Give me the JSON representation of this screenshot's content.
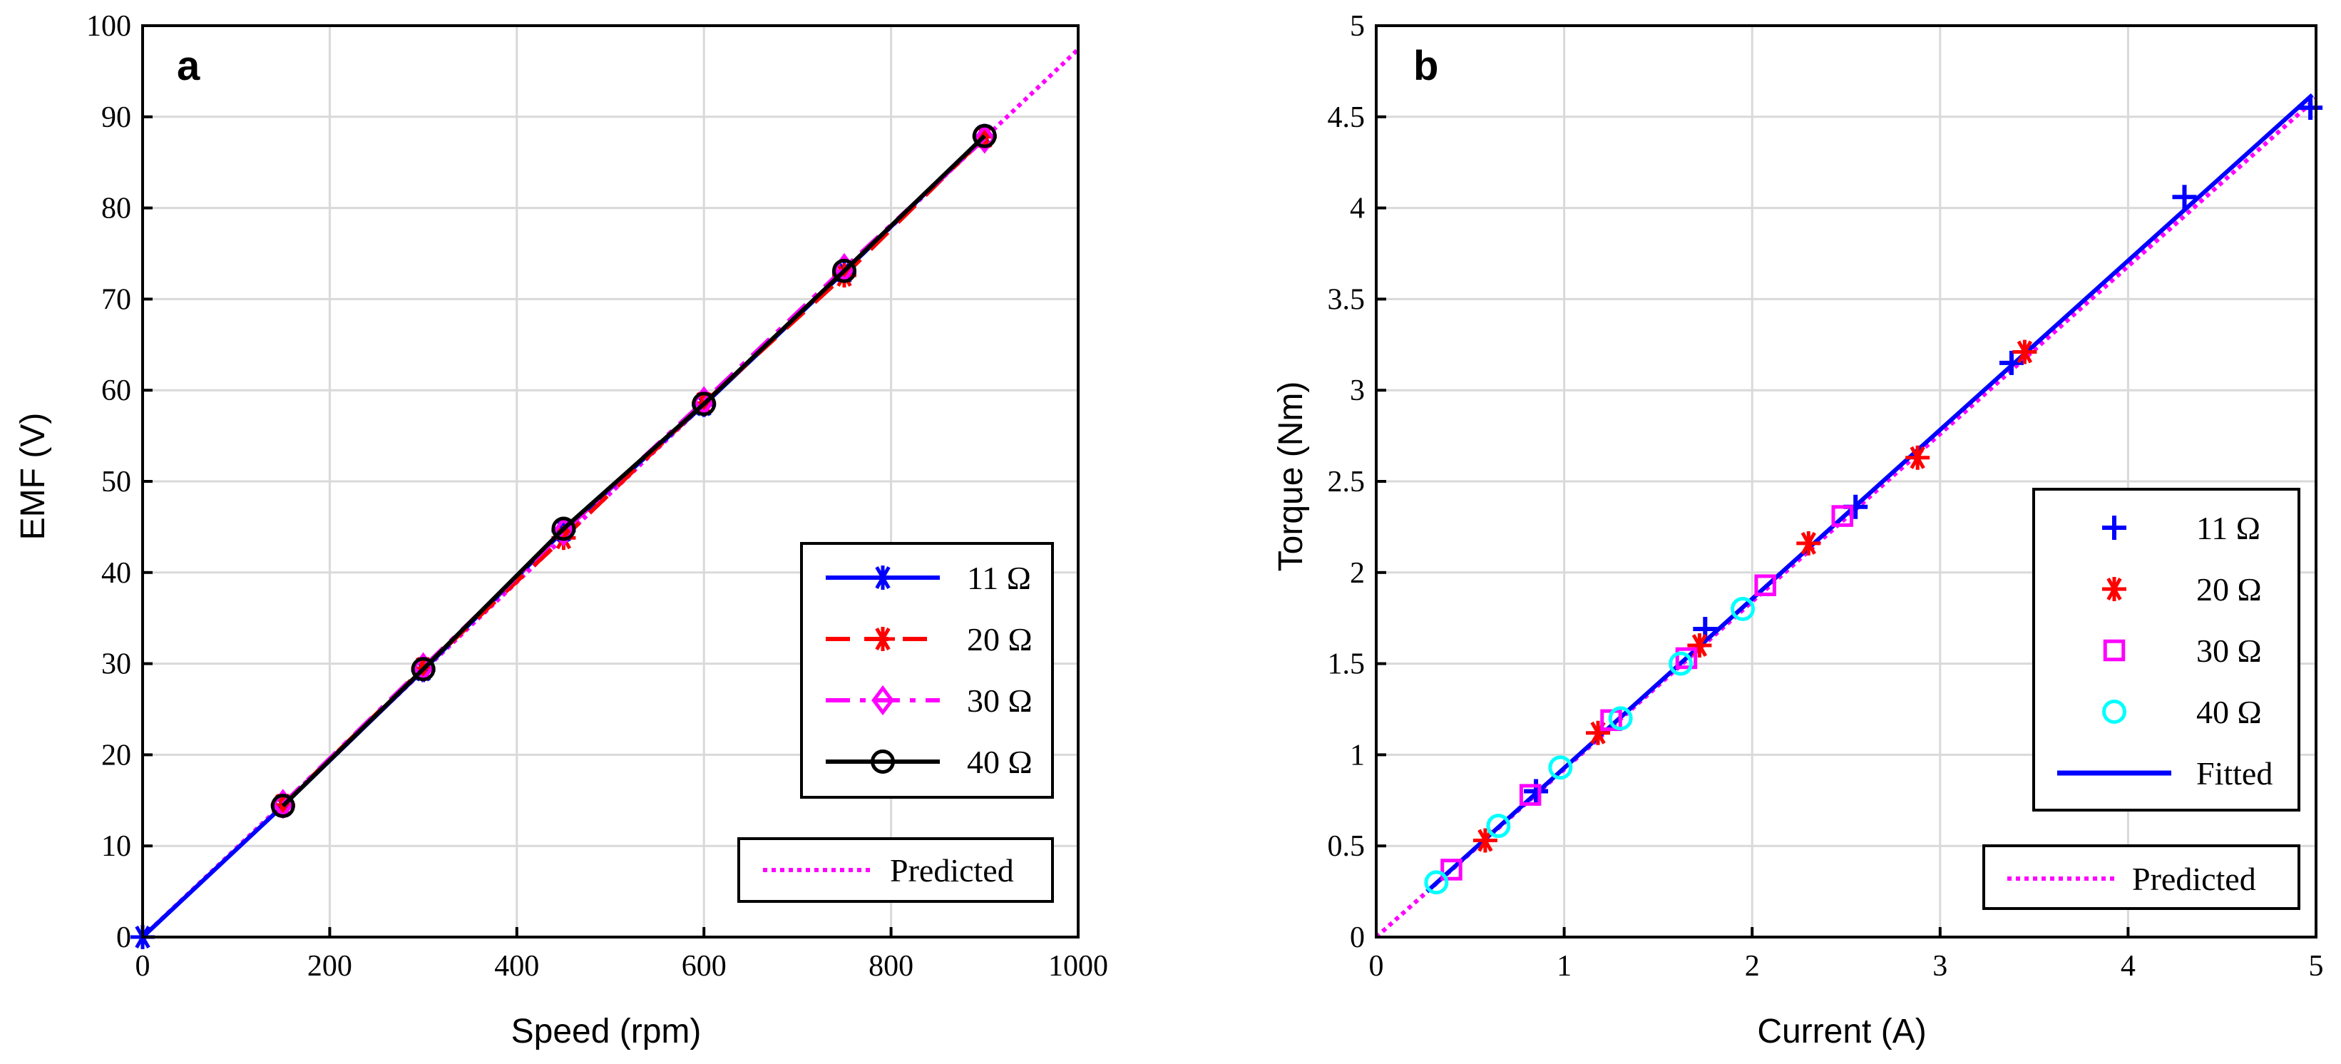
{
  "chart_data": [
    {
      "type": "line",
      "panel_label": "a",
      "xlabel": "Speed (rpm)",
      "ylabel": "EMF (V)",
      "xlim": [
        0,
        1000
      ],
      "ylim": [
        0,
        100
      ],
      "xticks": [
        "0",
        "200",
        "400",
        "600",
        "800",
        "1000"
      ],
      "yticks": [
        "0",
        "10",
        "20",
        "30",
        "40",
        "50",
        "60",
        "70",
        "80",
        "90",
        "100"
      ],
      "grid": true,
      "legend_position": "right",
      "series": [
        {
          "name": "11 Ω",
          "color": "#0000ff",
          "line": "solid",
          "marker": "asterisk",
          "x": [
            0,
            150,
            300,
            450,
            600,
            750,
            900
          ],
          "y": [
            0,
            14.4,
            29.3,
            44.6,
            58.4,
            73.0,
            87.9
          ]
        },
        {
          "name": "20 Ω",
          "color": "#ff0000",
          "line": "dashed",
          "marker": "asterisk",
          "x": [
            150,
            300,
            450,
            600,
            750,
            900
          ],
          "y": [
            14.5,
            29.5,
            43.8,
            58.6,
            72.6,
            87.8
          ]
        },
        {
          "name": "30 Ω",
          "color": "#ff00ff",
          "line": "dashdot",
          "marker": "diamond",
          "x": [
            150,
            300,
            450,
            600,
            750,
            900
          ],
          "y": [
            14.6,
            29.6,
            44.5,
            58.8,
            73.4,
            87.6
          ]
        },
        {
          "name": "40 Ω",
          "color": "#000000",
          "line": "solid",
          "marker": "circle",
          "x": [
            150,
            300,
            450,
            600,
            750,
            900
          ],
          "y": [
            14.4,
            29.4,
            44.8,
            58.5,
            73.1,
            87.9
          ]
        }
      ],
      "reference": {
        "name": "Predicted",
        "color": "#ff00ff",
        "line": "dotted",
        "x": [
          0,
          1000
        ],
        "y": [
          0,
          97.4
        ]
      }
    },
    {
      "type": "scatter",
      "panel_label": "b",
      "xlabel": "Current (A)",
      "ylabel": "Torque (Nm)",
      "xlim": [
        0,
        5
      ],
      "ylim": [
        0,
        5
      ],
      "xticks": [
        "0",
        "1",
        "2",
        "3",
        "4",
        "5"
      ],
      "yticks": [
        "0",
        "0.5",
        "1",
        "1.5",
        "2",
        "2.5",
        "3",
        "3.5",
        "4",
        "4.5",
        "5"
      ],
      "grid": true,
      "legend_position": "right",
      "series": [
        {
          "name": "11 Ω",
          "color": "#0000ff",
          "marker": "plus",
          "x": [
            0.85,
            1.75,
            2.55,
            3.38,
            4.3,
            4.97
          ],
          "y": [
            0.8,
            1.69,
            2.36,
            3.15,
            4.06,
            4.55
          ]
        },
        {
          "name": "20 Ω",
          "color": "#ff0000",
          "marker": "asterisk",
          "x": [
            0.58,
            1.18,
            1.72,
            2.3,
            2.88,
            3.45
          ],
          "y": [
            0.53,
            1.12,
            1.6,
            2.16,
            2.63,
            3.21
          ]
        },
        {
          "name": "30 Ω",
          "color": "#ff00ff",
          "marker": "square",
          "x": [
            0.4,
            0.82,
            1.25,
            1.65,
            2.07,
            2.48
          ],
          "y": [
            0.37,
            0.78,
            1.19,
            1.53,
            1.93,
            2.31
          ]
        },
        {
          "name": "40 Ω",
          "color": "#00ffff",
          "marker": "circle",
          "x": [
            0.32,
            0.65,
            0.98,
            1.3,
            1.62,
            1.95
          ],
          "y": [
            0.3,
            0.61,
            0.93,
            1.2,
            1.5,
            1.8
          ]
        }
      ],
      "fitted": {
        "name": "Fitted",
        "color": "#0000ff",
        "line": "solid",
        "x": [
          0.27,
          4.98
        ],
        "y": [
          0.25,
          4.62
        ]
      },
      "reference": {
        "name": "Predicted",
        "color": "#ff00ff",
        "line": "dotted",
        "x": [
          0,
          5
        ],
        "y": [
          0,
          4.6
        ]
      }
    }
  ]
}
